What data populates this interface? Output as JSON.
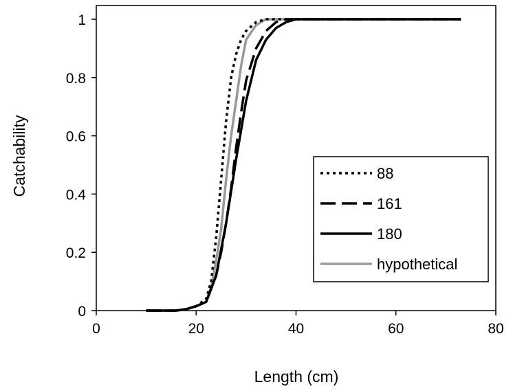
{
  "chart_data": {
    "type": "line",
    "title": "",
    "xlabel": "Length (cm)",
    "ylabel": "Catchability",
    "xlim": [
      0,
      80
    ],
    "ylim": [
      0,
      1
    ],
    "xticks": [
      "0",
      "20",
      "40",
      "60",
      "80"
    ],
    "yticks": [
      "0",
      "0.2",
      "0.4",
      "0.6",
      "0.8",
      "1"
    ],
    "grid": false,
    "legend_position": "bottom-right",
    "series": [
      {
        "name": "88",
        "style": "dotted",
        "color": "#000000",
        "x": [
          10,
          16,
          18,
          20,
          22,
          23,
          24,
          25,
          26,
          27,
          28,
          29,
          30,
          32,
          34,
          36,
          40,
          73
        ],
        "y": [
          0,
          0,
          0.005,
          0.015,
          0.04,
          0.1,
          0.25,
          0.45,
          0.65,
          0.8,
          0.88,
          0.93,
          0.96,
          0.99,
          1,
          1,
          1,
          1
        ]
      },
      {
        "name": "161",
        "style": "dashed",
        "color": "#000000",
        "x": [
          10,
          16,
          18,
          20,
          22,
          24,
          25,
          26,
          27,
          28,
          29,
          30,
          32,
          34,
          36,
          38,
          40,
          73
        ],
        "y": [
          0,
          0,
          0.005,
          0.015,
          0.03,
          0.12,
          0.2,
          0.3,
          0.42,
          0.56,
          0.68,
          0.79,
          0.9,
          0.96,
          0.99,
          1,
          1,
          1
        ]
      },
      {
        "name": "180",
        "style": "solid",
        "color": "#000000",
        "x": [
          10,
          16,
          18,
          20,
          22,
          24,
          26,
          28,
          30,
          32,
          34,
          36,
          38,
          40,
          42,
          73
        ],
        "y": [
          0,
          0,
          0.005,
          0.015,
          0.03,
          0.12,
          0.3,
          0.52,
          0.72,
          0.86,
          0.93,
          0.97,
          0.99,
          1,
          1,
          1
        ]
      },
      {
        "name": "hypothetical",
        "style": "solid",
        "color": "#999999",
        "x": [
          10,
          16,
          18,
          20,
          22,
          23,
          24,
          25,
          26,
          27,
          28,
          29,
          30,
          32,
          34,
          36,
          40,
          73
        ],
        "y": [
          0,
          0,
          0.005,
          0.015,
          0.03,
          0.08,
          0.17,
          0.28,
          0.45,
          0.6,
          0.72,
          0.84,
          0.93,
          0.98,
          1,
          1,
          1,
          1
        ]
      }
    ]
  }
}
